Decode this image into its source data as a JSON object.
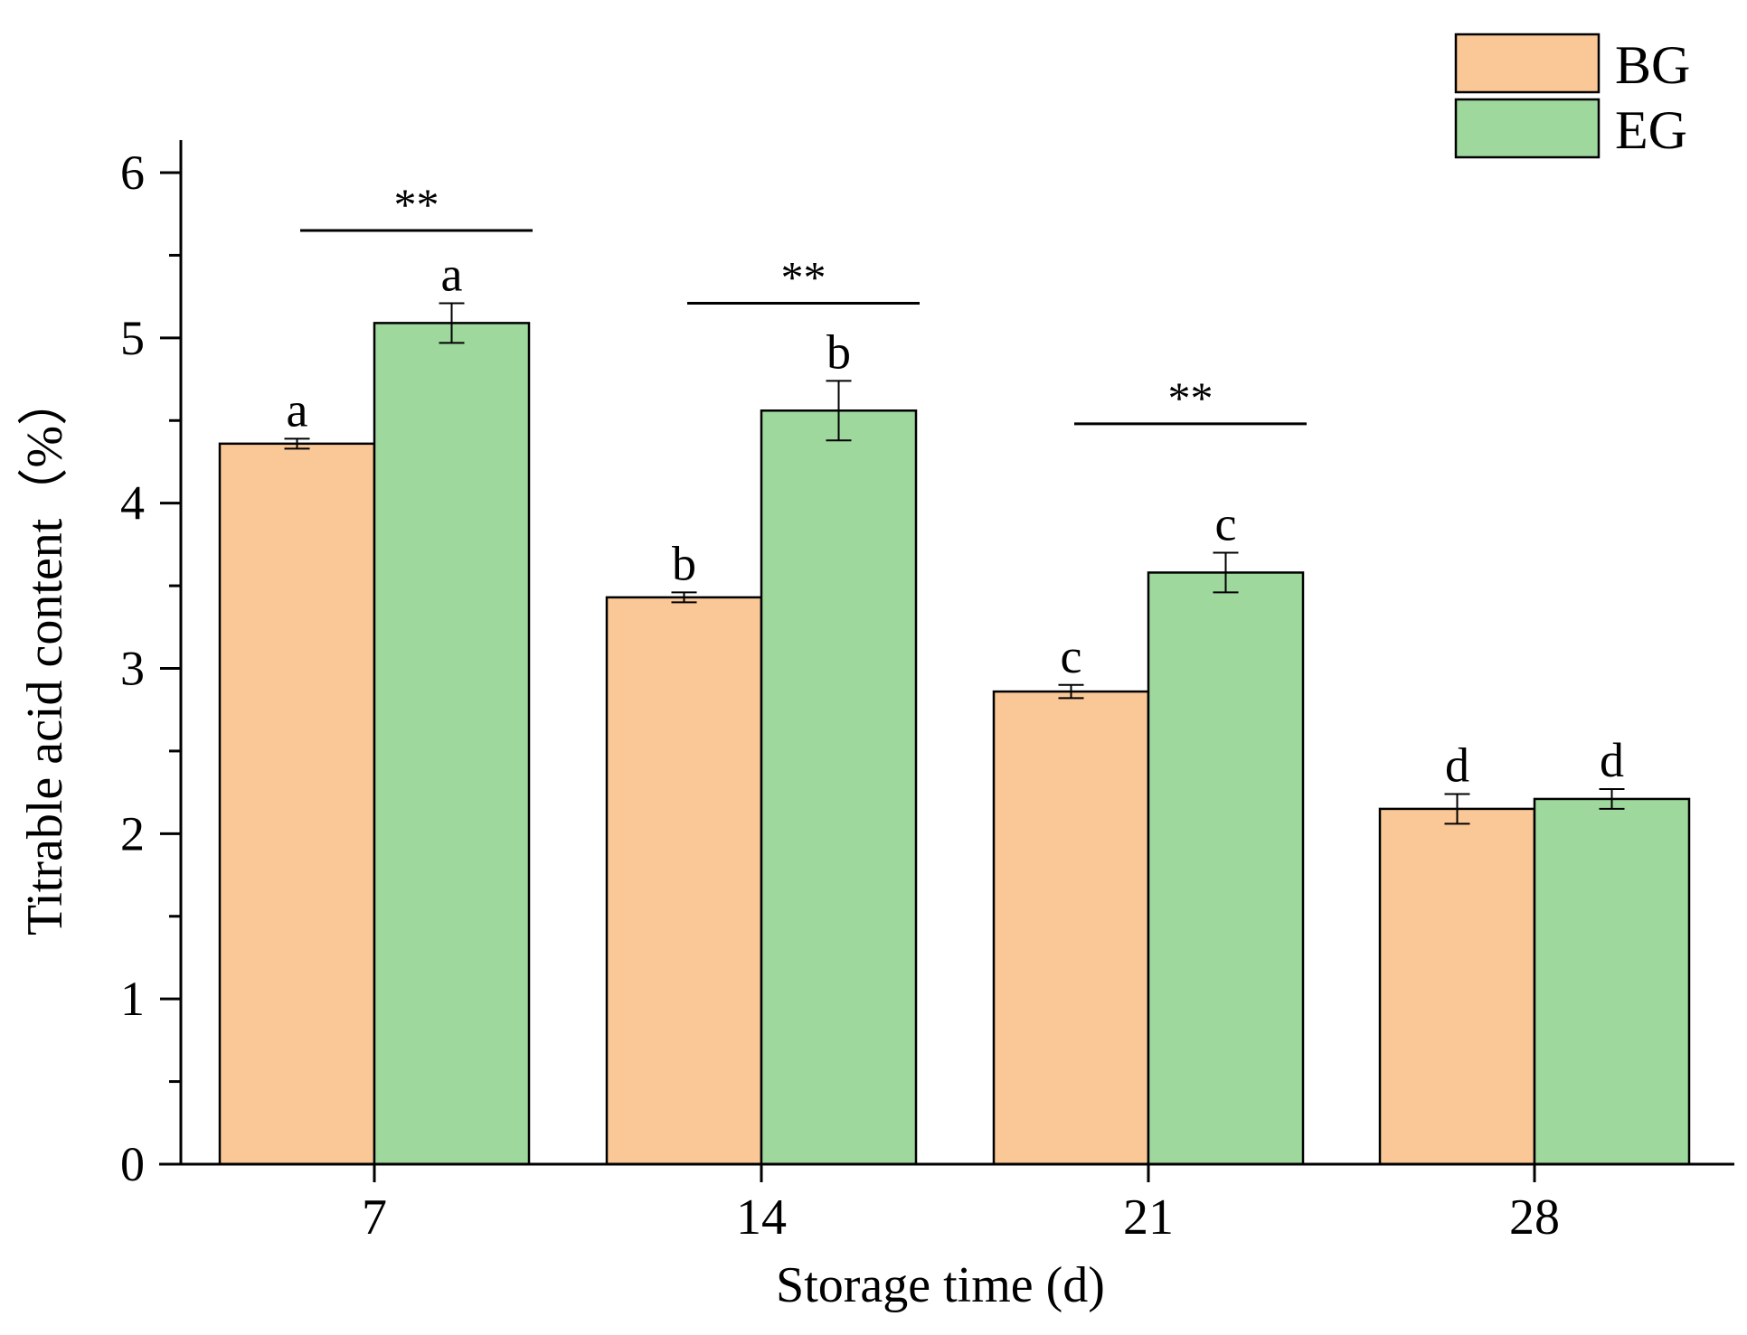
{
  "chart_data": {
    "type": "bar",
    "xlabel": "Storage time (d)",
    "ylabel": "Titrable acid content（%）",
    "categories": [
      "7",
      "14",
      "21",
      "28"
    ],
    "ylim": [
      0,
      6.2
    ],
    "yticks": [
      0,
      1,
      2,
      3,
      4,
      5,
      6
    ],
    "legend_position": "top-right",
    "series": [
      {
        "name": "BG",
        "color": "#FAC796",
        "values": [
          4.36,
          3.43,
          2.86,
          2.15
        ],
        "errors": [
          0.03,
          0.03,
          0.04,
          0.09
        ],
        "letters": [
          "a",
          "b",
          "c",
          "d"
        ]
      },
      {
        "name": "EG",
        "color": "#9ED89D",
        "values": [
          5.09,
          4.56,
          3.58,
          2.21
        ],
        "errors": [
          0.12,
          0.18,
          0.12,
          0.06
        ],
        "letters": [
          "a",
          "b",
          "c",
          "d"
        ]
      }
    ],
    "significance": [
      {
        "category": "7",
        "label": "**",
        "y": 5.65
      },
      {
        "category": "14",
        "label": "**",
        "y": 5.21
      },
      {
        "category": "21",
        "label": "**",
        "y": 4.48
      }
    ]
  }
}
